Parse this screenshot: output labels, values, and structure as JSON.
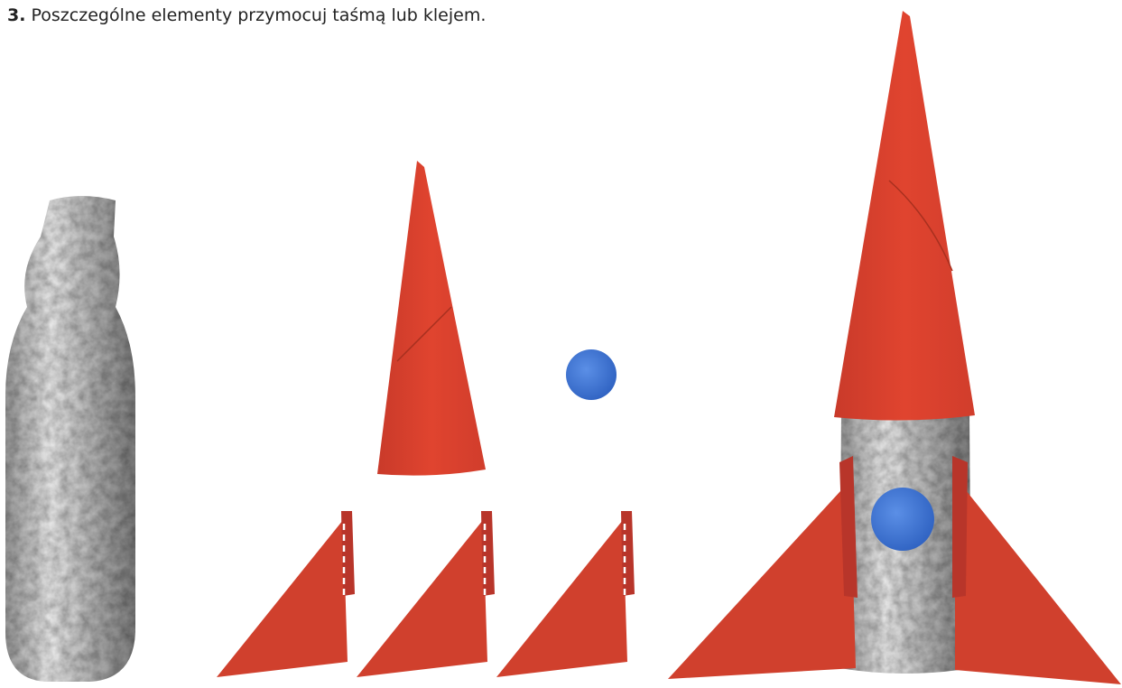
{
  "step": {
    "number": "3.",
    "text": "Poszczególne elementy przymocuj taśmą lub klejem."
  }
}
